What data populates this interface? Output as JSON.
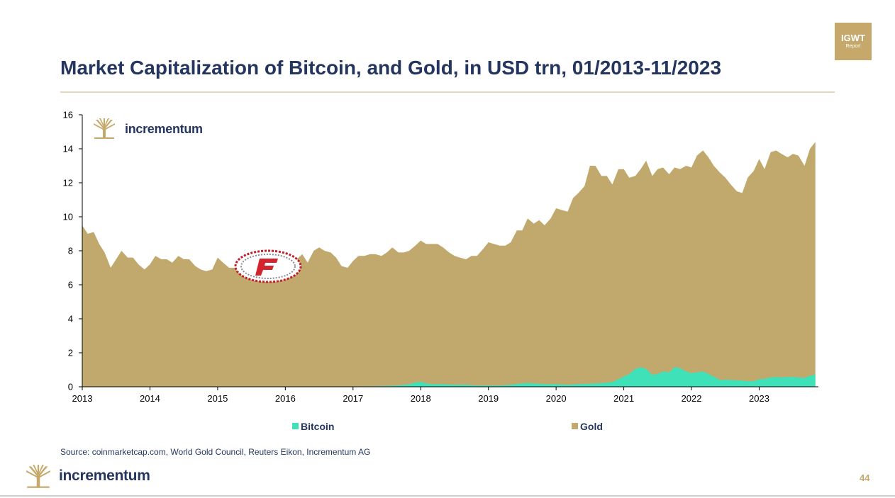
{
  "header": {
    "title": "Market Capitalization of Bitcoin, and Gold, in USD trn, 01/2013-11/2023",
    "badge_main": "IGWT",
    "badge_sub": "Report"
  },
  "chart_brand": "incrementum",
  "colors": {
    "gold": "#c1a96d",
    "bitcoin": "#3fe1b8",
    "title": "#24365f",
    "accent": "#c6a86a"
  },
  "chart_data": {
    "type": "area",
    "title": "Market Capitalization of Bitcoin, and Gold, in USD trn, 01/2013-11/2023",
    "xlabel": "",
    "ylabel": "",
    "xlim": [
      2013,
      2023.875
    ],
    "ylim": [
      0,
      16
    ],
    "yticks": [
      0,
      2,
      4,
      6,
      8,
      10,
      12,
      14,
      16
    ],
    "xticks": [
      2013,
      2014,
      2015,
      2016,
      2017,
      2018,
      2019,
      2020,
      2021,
      2022,
      2023
    ],
    "stacked": false,
    "legend_position": "bottom",
    "grid": false,
    "series": [
      {
        "name": "Gold",
        "color": "#c1a96d",
        "points": [
          [
            2013.0,
            9.5
          ],
          [
            2013.08,
            9.0
          ],
          [
            2013.17,
            9.1
          ],
          [
            2013.25,
            8.4
          ],
          [
            2013.33,
            7.9
          ],
          [
            2013.42,
            7.0
          ],
          [
            2013.5,
            7.5
          ],
          [
            2013.58,
            8.0
          ],
          [
            2013.67,
            7.6
          ],
          [
            2013.75,
            7.6
          ],
          [
            2013.83,
            7.2
          ],
          [
            2013.92,
            6.9
          ],
          [
            2014.0,
            7.2
          ],
          [
            2014.08,
            7.7
          ],
          [
            2014.17,
            7.5
          ],
          [
            2014.25,
            7.5
          ],
          [
            2014.33,
            7.3
          ],
          [
            2014.42,
            7.7
          ],
          [
            2014.5,
            7.5
          ],
          [
            2014.58,
            7.5
          ],
          [
            2014.67,
            7.1
          ],
          [
            2014.75,
            6.9
          ],
          [
            2014.83,
            6.8
          ],
          [
            2014.92,
            6.9
          ],
          [
            2015.0,
            7.6
          ],
          [
            2015.08,
            7.3
          ],
          [
            2015.17,
            7.0
          ],
          [
            2015.25,
            7.0
          ],
          [
            2015.33,
            7.1
          ],
          [
            2015.42,
            7.0
          ],
          [
            2015.5,
            6.6
          ],
          [
            2015.58,
            6.6
          ],
          [
            2015.67,
            6.8
          ],
          [
            2015.75,
            6.7
          ],
          [
            2015.83,
            6.3
          ],
          [
            2015.92,
            6.3
          ],
          [
            2016.0,
            6.8
          ],
          [
            2016.08,
            7.4
          ],
          [
            2016.17,
            7.5
          ],
          [
            2016.25,
            7.8
          ],
          [
            2016.33,
            7.3
          ],
          [
            2016.42,
            8.0
          ],
          [
            2016.5,
            8.2
          ],
          [
            2016.58,
            8.0
          ],
          [
            2016.67,
            7.9
          ],
          [
            2016.75,
            7.6
          ],
          [
            2016.83,
            7.1
          ],
          [
            2016.92,
            7.0
          ],
          [
            2017.0,
            7.4
          ],
          [
            2017.08,
            7.7
          ],
          [
            2017.17,
            7.7
          ],
          [
            2017.25,
            7.8
          ],
          [
            2017.33,
            7.8
          ],
          [
            2017.42,
            7.7
          ],
          [
            2017.5,
            7.9
          ],
          [
            2017.58,
            8.2
          ],
          [
            2017.67,
            7.9
          ],
          [
            2017.75,
            7.9
          ],
          [
            2017.83,
            8.0
          ],
          [
            2017.92,
            8.3
          ],
          [
            2018.0,
            8.6
          ],
          [
            2018.08,
            8.4
          ],
          [
            2018.17,
            8.4
          ],
          [
            2018.25,
            8.4
          ],
          [
            2018.33,
            8.2
          ],
          [
            2018.42,
            7.9
          ],
          [
            2018.5,
            7.7
          ],
          [
            2018.58,
            7.6
          ],
          [
            2018.67,
            7.5
          ],
          [
            2018.75,
            7.7
          ],
          [
            2018.83,
            7.7
          ],
          [
            2018.92,
            8.1
          ],
          [
            2019.0,
            8.5
          ],
          [
            2019.08,
            8.4
          ],
          [
            2019.17,
            8.3
          ],
          [
            2019.25,
            8.3
          ],
          [
            2019.33,
            8.5
          ],
          [
            2019.42,
            9.2
          ],
          [
            2019.5,
            9.2
          ],
          [
            2019.58,
            9.9
          ],
          [
            2019.67,
            9.6
          ],
          [
            2019.75,
            9.8
          ],
          [
            2019.83,
            9.5
          ],
          [
            2019.92,
            9.9
          ],
          [
            2020.0,
            10.5
          ],
          [
            2020.08,
            10.4
          ],
          [
            2020.17,
            10.3
          ],
          [
            2020.25,
            11.1
          ],
          [
            2020.33,
            11.4
          ],
          [
            2020.42,
            11.8
          ],
          [
            2020.5,
            13.0
          ],
          [
            2020.58,
            13.0
          ],
          [
            2020.67,
            12.4
          ],
          [
            2020.75,
            12.4
          ],
          [
            2020.83,
            11.9
          ],
          [
            2020.92,
            12.8
          ],
          [
            2021.0,
            12.8
          ],
          [
            2021.08,
            12.3
          ],
          [
            2021.17,
            12.4
          ],
          [
            2021.25,
            12.8
          ],
          [
            2021.33,
            13.3
          ],
          [
            2021.42,
            12.4
          ],
          [
            2021.5,
            12.8
          ],
          [
            2021.58,
            12.9
          ],
          [
            2021.67,
            12.5
          ],
          [
            2021.75,
            12.9
          ],
          [
            2021.83,
            12.8
          ],
          [
            2021.92,
            13.0
          ],
          [
            2022.0,
            12.9
          ],
          [
            2022.08,
            13.6
          ],
          [
            2022.17,
            13.9
          ],
          [
            2022.25,
            13.5
          ],
          [
            2022.33,
            13.0
          ],
          [
            2022.42,
            12.6
          ],
          [
            2022.5,
            12.3
          ],
          [
            2022.58,
            11.9
          ],
          [
            2022.67,
            11.5
          ],
          [
            2022.75,
            11.4
          ],
          [
            2022.83,
            12.3
          ],
          [
            2022.92,
            12.7
          ],
          [
            2023.0,
            13.4
          ],
          [
            2023.08,
            12.8
          ],
          [
            2023.17,
            13.8
          ],
          [
            2023.25,
            13.9
          ],
          [
            2023.33,
            13.7
          ],
          [
            2023.42,
            13.5
          ],
          [
            2023.5,
            13.7
          ],
          [
            2023.58,
            13.6
          ],
          [
            2023.67,
            13.0
          ],
          [
            2023.75,
            14.0
          ],
          [
            2023.83,
            14.4
          ]
        ]
      },
      {
        "name": "Bitcoin",
        "color": "#3fe1b8",
        "points": [
          [
            2013.0,
            0.0
          ],
          [
            2016.5,
            0.0
          ],
          [
            2017.0,
            0.02
          ],
          [
            2017.33,
            0.03
          ],
          [
            2017.5,
            0.05
          ],
          [
            2017.67,
            0.08
          ],
          [
            2017.83,
            0.15
          ],
          [
            2017.92,
            0.25
          ],
          [
            2018.0,
            0.3
          ],
          [
            2018.08,
            0.2
          ],
          [
            2018.17,
            0.15
          ],
          [
            2018.33,
            0.15
          ],
          [
            2018.5,
            0.12
          ],
          [
            2018.67,
            0.12
          ],
          [
            2018.83,
            0.07
          ],
          [
            2019.0,
            0.07
          ],
          [
            2019.17,
            0.07
          ],
          [
            2019.33,
            0.12
          ],
          [
            2019.5,
            0.2
          ],
          [
            2019.58,
            0.22
          ],
          [
            2019.67,
            0.2
          ],
          [
            2019.83,
            0.15
          ],
          [
            2020.0,
            0.15
          ],
          [
            2020.17,
            0.12
          ],
          [
            2020.33,
            0.16
          ],
          [
            2020.5,
            0.18
          ],
          [
            2020.67,
            0.22
          ],
          [
            2020.83,
            0.28
          ],
          [
            2020.92,
            0.45
          ],
          [
            2021.0,
            0.6
          ],
          [
            2021.08,
            0.75
          ],
          [
            2021.17,
            1.05
          ],
          [
            2021.25,
            1.15
          ],
          [
            2021.33,
            1.05
          ],
          [
            2021.42,
            0.7
          ],
          [
            2021.5,
            0.75
          ],
          [
            2021.58,
            0.9
          ],
          [
            2021.67,
            0.85
          ],
          [
            2021.75,
            1.15
          ],
          [
            2021.83,
            1.1
          ],
          [
            2021.92,
            0.9
          ],
          [
            2022.0,
            0.8
          ],
          [
            2022.08,
            0.85
          ],
          [
            2022.17,
            0.9
          ],
          [
            2022.25,
            0.75
          ],
          [
            2022.33,
            0.6
          ],
          [
            2022.42,
            0.4
          ],
          [
            2022.5,
            0.42
          ],
          [
            2022.58,
            0.4
          ],
          [
            2022.67,
            0.38
          ],
          [
            2022.75,
            0.37
          ],
          [
            2022.83,
            0.33
          ],
          [
            2022.92,
            0.33
          ],
          [
            2023.0,
            0.45
          ],
          [
            2023.08,
            0.46
          ],
          [
            2023.17,
            0.55
          ],
          [
            2023.25,
            0.58
          ],
          [
            2023.33,
            0.55
          ],
          [
            2023.42,
            0.58
          ],
          [
            2023.5,
            0.58
          ],
          [
            2023.58,
            0.55
          ],
          [
            2023.67,
            0.52
          ],
          [
            2023.75,
            0.65
          ],
          [
            2023.83,
            0.72
          ]
        ]
      }
    ]
  },
  "source": "Source: coinmarketcap.com, World Gold Council, Reuters Eikon, Incrementum AG",
  "footer": {
    "brand": "incrementum",
    "page_number": "44"
  },
  "icons": {
    "brand_logo": "tree-logo-icon",
    "watermark": "f-circle-watermark-icon"
  }
}
